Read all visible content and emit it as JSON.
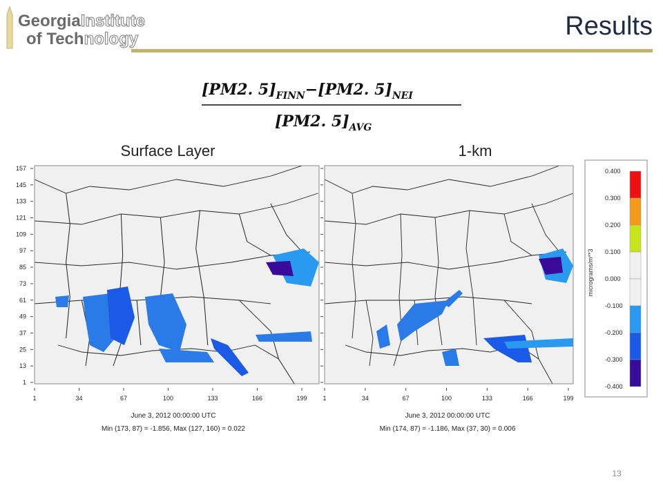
{
  "header": {
    "logo_line1_bold": "Georgia",
    "logo_line1_light": "Institute",
    "logo_line2_bold": "of Tech",
    "logo_line2_light": "nology",
    "title": "Results"
  },
  "formula": {
    "term1": "[PM2. 5]",
    "sub1": "FINN",
    "operator": "−",
    "term2": "[PM2. 5]",
    "sub2": "NEI",
    "denominator": "[PM2. 5]",
    "sub3": "AVG"
  },
  "panels": [
    {
      "label": "Surface Layer",
      "date": "June 3, 2012 00:00:00 UTC",
      "minmax": "Min (173, 87) = -1.856, Max (127, 160) = 0.022"
    },
    {
      "label": "1-km",
      "date": "June 3, 2012 00:00:00 UTC",
      "minmax": "Min (174, 87) = -1.186, Max (37, 30) = 0.006"
    }
  ],
  "axes": {
    "xlim": [
      1,
      199
    ],
    "xticks": [
      1,
      34,
      67,
      100,
      133,
      166,
      199
    ],
    "ylim": [
      1,
      157
    ],
    "yticks": [
      1,
      13,
      25,
      37,
      49,
      61,
      73,
      85,
      97,
      109,
      121,
      133,
      145,
      157
    ]
  },
  "colorbar": {
    "unit": "micrograms/m**3",
    "labels": [
      "0.400",
      "0.300",
      "0.200",
      "0.100",
      "0.000",
      "-0.100",
      "-0.200",
      "-0.300",
      "-0.400"
    ],
    "colors": [
      "#ee1111",
      "#f49a1a",
      "#c8e61e",
      "#f0f0f0",
      "#f0f0f0",
      "#2a9af0",
      "#1a5ae6",
      "#3a0a9a"
    ]
  },
  "footer": {
    "page": "13"
  }
}
